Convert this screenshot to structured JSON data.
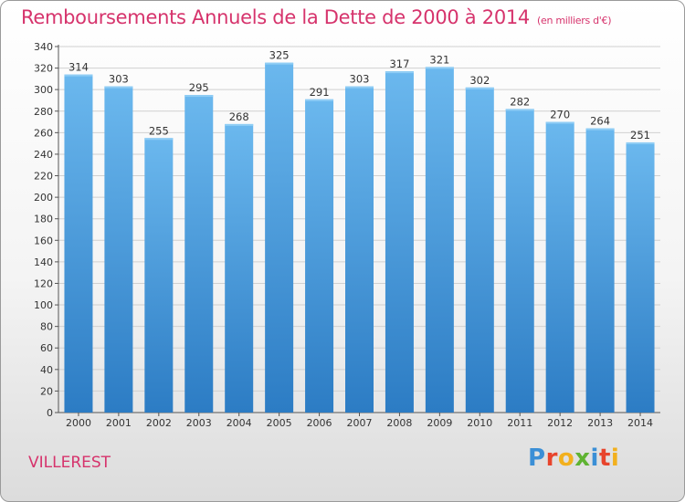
{
  "header": {
    "title": "Remboursements Annuels de la Dette de 2000 à 2014",
    "subtitle": "(en milliers d'€)"
  },
  "location": "VILLEREST",
  "brand": {
    "letters": [
      "P",
      "r",
      "o",
      "x",
      "i",
      "t",
      "i"
    ],
    "colors": [
      "#3b8fd6",
      "#e8442c",
      "#f2b01e",
      "#5fb332",
      "#3b8fd6",
      "#e8442c",
      "#f2b01e"
    ]
  },
  "colors": {
    "bar_top": "#6bb8ee",
    "bar_bottom": "#2c7cc4",
    "title": "#d6336c",
    "grid": "#d0d0d0"
  },
  "chart_data": {
    "type": "bar",
    "title": "Remboursements Annuels de la Dette de 2000 à 2014",
    "subtitle": "(en milliers d'€)",
    "categories": [
      "2000",
      "2001",
      "2002",
      "2003",
      "2004",
      "2005",
      "2006",
      "2007",
      "2008",
      "2009",
      "2010",
      "2011",
      "2012",
      "2013",
      "2014"
    ],
    "values": [
      314,
      303,
      255,
      295,
      268,
      325,
      291,
      303,
      317,
      321,
      302,
      282,
      270,
      264,
      251
    ],
    "ylim": [
      0,
      340
    ],
    "yticks": [
      0,
      20,
      40,
      60,
      80,
      100,
      120,
      140,
      160,
      180,
      200,
      220,
      240,
      260,
      280,
      300,
      320,
      340
    ],
    "grid": true,
    "xlabel": "",
    "ylabel": ""
  }
}
